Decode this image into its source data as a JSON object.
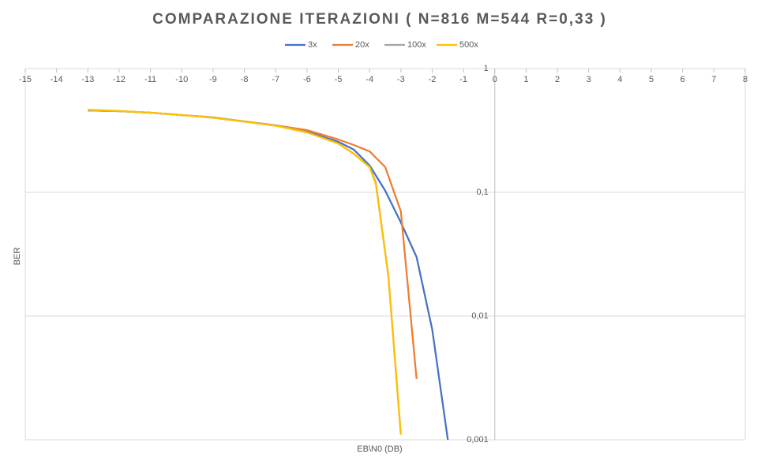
{
  "chart_data": {
    "type": "line",
    "title": "COMPARAZIONE ITERAZIONI ( N=816 M=544 R=0,33 )",
    "x_label": "EB\\N0 (DB)",
    "y_label": "BER",
    "y_scale": "log",
    "grid": true,
    "legend": "top",
    "xlim": [
      -15,
      8
    ],
    "xticks": [
      -15,
      -14,
      -13,
      -12,
      -11,
      -10,
      -9,
      -8,
      -7,
      -6,
      -5,
      -4,
      -3,
      -2,
      -1,
      0,
      1,
      2,
      3,
      4,
      5,
      6,
      7,
      8
    ],
    "ylim": [
      0.001,
      1
    ],
    "yticks": [
      {
        "value": 0.001,
        "label": "0,001"
      },
      {
        "value": 0.01,
        "label": "0,01"
      },
      {
        "value": 0.1,
        "label": "0,1"
      },
      1
    ],
    "series": [
      {
        "name": "3x",
        "color": "#4472c4",
        "x": [
          -13,
          -12,
          -11,
          -10,
          -9,
          -8,
          -7,
          -6,
          -5,
          -4.5,
          -4,
          -3.5,
          -3,
          -2.5,
          -2,
          -1.5
        ],
        "values": [
          0.459,
          0.453,
          0.44,
          0.421,
          0.403,
          0.374,
          0.348,
          0.309,
          0.256,
          0.221,
          0.165,
          0.103,
          0.057,
          0.03,
          0.0078,
          0.001
        ]
      },
      {
        "name": "20x",
        "color": "#ed7d31",
        "x": [
          -13,
          -12,
          -11,
          -10,
          -9,
          -8,
          -7,
          -6,
          -5,
          -4.5,
          -4,
          -3.5,
          -3,
          -2.5
        ],
        "values": [
          0.459,
          0.453,
          0.44,
          0.421,
          0.403,
          0.374,
          0.348,
          0.318,
          0.267,
          0.241,
          0.214,
          0.16,
          0.07,
          0.0031
        ]
      },
      {
        "name": "100x",
        "color": "#a5a5a5",
        "x": [
          -13,
          -12,
          -11,
          -10,
          -9,
          -8,
          -7,
          -6,
          -5,
          -4.5,
          -4,
          -3.8,
          -3.4,
          -3
        ],
        "values": [
          0.459,
          0.453,
          0.44,
          0.421,
          0.403,
          0.374,
          0.348,
          0.305,
          0.248,
          0.205,
          0.16,
          0.12,
          0.021,
          0.0011
        ]
      },
      {
        "name": "500x",
        "color": "#ffc000",
        "x": [
          -13,
          -12,
          -11,
          -10,
          -9,
          -8,
          -7,
          -6,
          -5,
          -4.5,
          -4,
          -3.8,
          -3.4,
          -3
        ],
        "values": [
          0.465,
          0.455,
          0.44,
          0.421,
          0.4,
          0.372,
          0.345,
          0.305,
          0.248,
          0.205,
          0.16,
          0.117,
          0.021,
          0.0011
        ]
      }
    ]
  }
}
